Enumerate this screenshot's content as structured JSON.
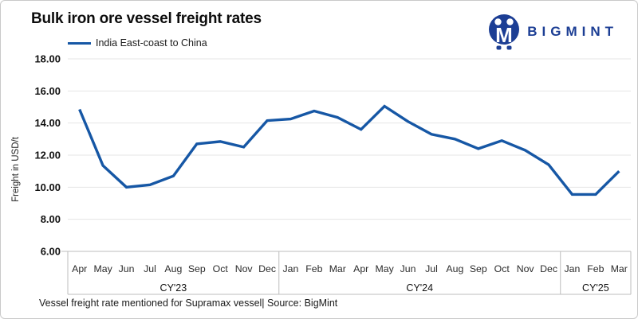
{
  "title": "Bulk iron ore vessel freight rates",
  "legend": {
    "label": "India East-coast to China"
  },
  "logo": {
    "brand": "BIGMINT"
  },
  "footer": "Vessel freight rate mentioned for Supramax vessel| Source: BigMint",
  "colors": {
    "line": "#1657A5",
    "brand": "#1C3E94",
    "grid": "#e4e4e4",
    "band_border": "#bdbdbd",
    "tick_text": "#111111",
    "month_text": "#2b2b2b"
  },
  "chart_data": {
    "type": "line",
    "title": "Bulk iron ore vessel freight rates",
    "ylabel": "Freight in USD/t",
    "xlabel": "",
    "ylim": [
      6,
      18
    ],
    "ytick_step": 2,
    "ytick_format": "2dp",
    "grid": true,
    "legend_position": "top-left",
    "categories": [
      "Apr",
      "May",
      "Jun",
      "Jul",
      "Aug",
      "Sep",
      "Oct",
      "Nov",
      "Dec",
      "Jan",
      "Feb",
      "Mar",
      "Apr",
      "May",
      "Jun",
      "Jul",
      "Aug",
      "Sep",
      "Oct",
      "Nov",
      "Dec",
      "Jan",
      "Feb",
      "Mar"
    ],
    "groups": [
      {
        "label": "CY'23",
        "count": 9
      },
      {
        "label": "CY'24",
        "count": 12
      },
      {
        "label": "CY'25",
        "count": 3
      }
    ],
    "series": [
      {
        "name": "India East-coast to China",
        "values": [
          14.85,
          11.35,
          10.0,
          10.15,
          10.7,
          12.7,
          12.85,
          12.5,
          14.15,
          14.25,
          14.75,
          14.35,
          13.6,
          15.05,
          14.1,
          13.3,
          13.0,
          12.4,
          12.9,
          12.3,
          11.4,
          9.55,
          9.55,
          11.0
        ]
      }
    ]
  }
}
